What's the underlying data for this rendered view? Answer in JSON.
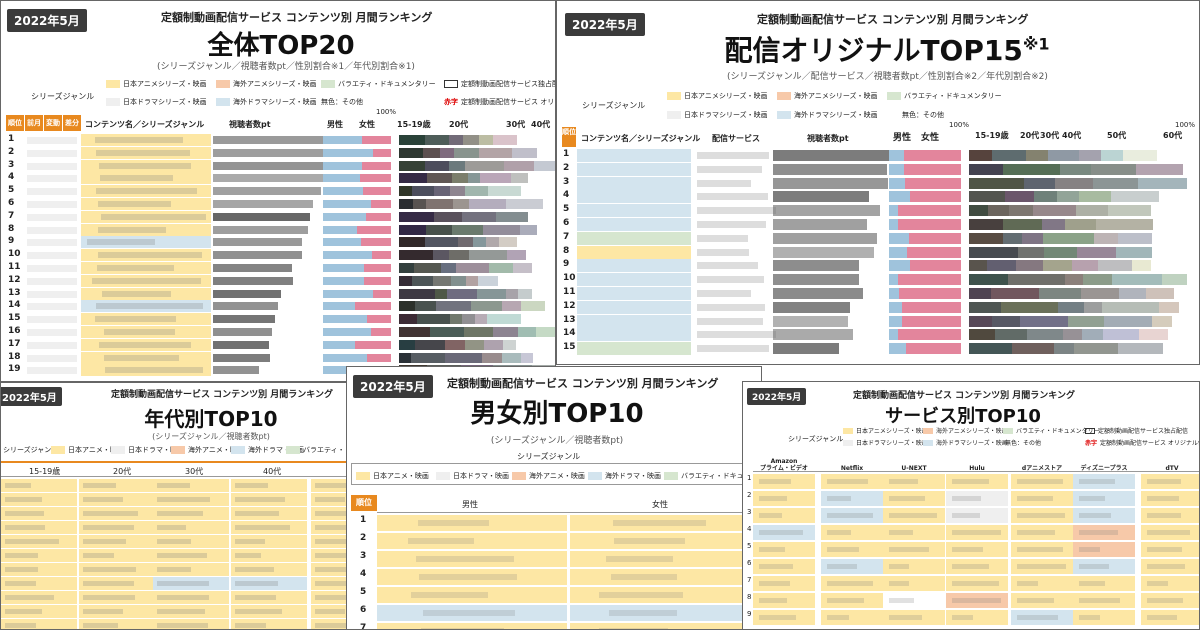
{
  "panels": {
    "overall": {
      "badge": "2022年5月",
      "subtitle": "定額制動画配信サービス コンテンツ別 月間ランキング",
      "title": "全体TOP20",
      "note": "(シリーズジャンル／視聴者数pt／性別割合※1／年代別割合※1)",
      "legend_label": "シリーズジャンル",
      "legend": [
        "日本アニメシリーズ・映画",
        "海外アニメシリーズ・映画",
        "バラエティ・ドキュメンタリー",
        "日本ドラマシリーズ・映画",
        "海外ドラマシリーズ・映画",
        "無色：その他"
      ],
      "legend_extra1": "定額制動画配信サービス独占配",
      "legend_red": "赤字",
      "legend_extra2": "定額制動画配信サービス オリジナ",
      "headers": {
        "rank": "順位",
        "prev": "前月",
        "change": "変動",
        "diff": "差分",
        "content": "コンテンツ名／シリーズジャンル",
        "viewers": "視聴者数pt",
        "male": "男性",
        "female": "女性",
        "pct100": "100%",
        "age1": "15-19歳",
        "age2": "20代",
        "age3": "30代",
        "age4": "40代"
      },
      "ranks": [
        "1",
        "2",
        "3",
        "4",
        "5",
        "6",
        "7",
        "8",
        "9",
        "10",
        "11",
        "12",
        "13",
        "14",
        "15",
        "16",
        "17",
        "18",
        "19"
      ]
    },
    "original": {
      "badge": "2022年5月",
      "subtitle": "定額制動画配信サービス コンテンツ別 月間ランキング",
      "title": "配信オリジナルTOP15",
      "title_mark": "※1",
      "note": "(シリーズジャンル／配信サービス／視聴者数pt／性別割合※2／年代別割合※2)",
      "legend_label": "シリーズジャンル",
      "legend": [
        "日本アニメシリーズ・映画",
        "海外アニメシリーズ・映画",
        "バラエティ・ドキュメンタリー",
        "日本ドラマシリーズ・映画",
        "海外ドラマシリーズ・映画",
        "無色：その他"
      ],
      "headers": {
        "rank": "順位",
        "content": "コンテンツ名／シリーズジャンル",
        "service": "配信サービス",
        "viewers": "視聴者数pt",
        "male": "男性",
        "female": "女性",
        "pct100a": "100%",
        "age1": "15-19歳",
        "age2": "20代",
        "age3": "30代",
        "age4": "40代",
        "age5": "50代",
        "age6": "60代",
        "pct100b": "100%"
      },
      "ranks": [
        "1",
        "2",
        "3",
        "4",
        "5",
        "6",
        "7",
        "8",
        "9",
        "10",
        "11",
        "12",
        "13",
        "14",
        "15"
      ]
    },
    "age": {
      "badge": "2022年5月",
      "subtitle": "定額制動画配信サービス コンテンツ別 月間ランキング",
      "title": "年代別TOP10",
      "note": "(シリーズジャンル／視聴者数pt)",
      "legend_label": "シリーズジャンル：",
      "legend": [
        "日本アニメ・映画",
        "日本ドラマ・映画",
        "海外アニメ・映画",
        "海外ドラマ・映画",
        "バラエティ・ドキュメ"
      ],
      "headers": [
        "15-19歳",
        "20代",
        "30代",
        "40代"
      ]
    },
    "gender": {
      "badge": "2022年5月",
      "subtitle": "定額制動画配信サービス コンテンツ別 月間ランキング",
      "title": "男女別TOP10",
      "note": "(シリーズジャンル／視聴者数pt)",
      "legend_label": "シリーズジャンル",
      "legend": [
        "日本アニメ・映画",
        "日本ドラマ・映画",
        "海外アニメ・映画",
        "海外ドラマ・映画",
        "バラエティ・ドキュメン"
      ],
      "headers": {
        "rank": "順位",
        "male": "男性",
        "female": "女性"
      },
      "ranks": [
        "1",
        "2",
        "3",
        "4",
        "5",
        "6",
        "7"
      ]
    },
    "service": {
      "badge": "2022年5月",
      "subtitle": "定額制動画配信サービス コンテンツ別 月間ランキング",
      "title": "サービス別TOP10",
      "legend_label": "シリーズジャンル",
      "legend": [
        "日本アニメシリーズ・映画",
        "海外アニメシリーズ・映画",
        "バラエティ・ドキュメンタリー",
        "日本ドラマシリーズ・映画",
        "海外ドラマシリーズ・映画",
        "無色：その他"
      ],
      "legend_extra1": "定額制動画配信サービス独占配信",
      "legend_red": "赤字",
      "legend_extra2": "定額制動画配信サービス オリジナル作品",
      "services": [
        "Amazon\nプライム・ビデオ",
        "Netflix",
        "U-NEXT",
        "Hulu",
        "dアニメストア",
        "ディズニープラス",
        "dTV"
      ],
      "ranks": [
        "1",
        "2",
        "3",
        "4",
        "5",
        "6",
        "7",
        "8",
        "9"
      ]
    }
  },
  "colors": {
    "jpanime": "#fde7a4",
    "jpdrama": "#efefef",
    "fanime": "#f7c9a9",
    "fdrama": "#d3e4ee",
    "variety": "#d6e6cf",
    "accent": "#e8891f",
    "badge": "#3b3b3b",
    "male": "#9fc3dc",
    "female": "#e3859c"
  }
}
